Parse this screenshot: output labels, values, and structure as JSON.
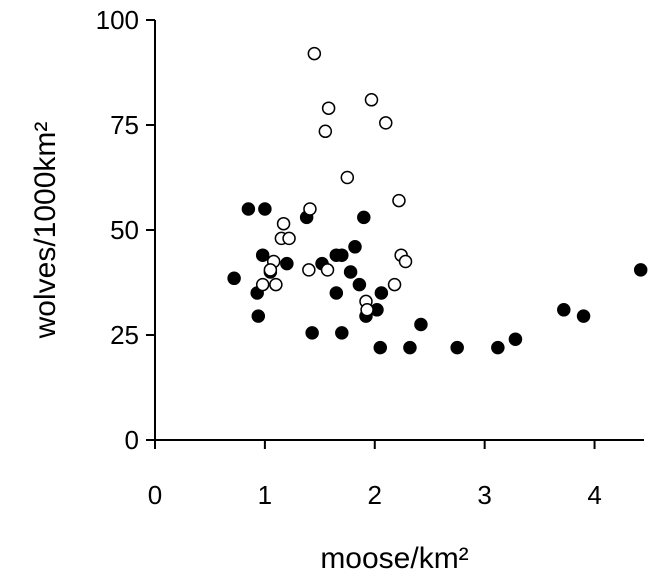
{
  "chart_data": {
    "type": "scatter",
    "title": "",
    "xlabel": "moose/km²",
    "ylabel": "wolves/1000km²",
    "xlim": [
      0,
      4.45
    ],
    "ylim": [
      0,
      100
    ],
    "x_ticks": [
      "0",
      "1",
      "2",
      "3",
      "4"
    ],
    "x_tick_values": [
      0,
      1,
      2,
      3,
      4
    ],
    "y_ticks": [
      "0",
      "25",
      "50",
      "75",
      "100"
    ],
    "y_tick_values": [
      0,
      25,
      50,
      75,
      100
    ],
    "grid": false,
    "legend": "none",
    "series": [
      {
        "marker": "filled-circle",
        "color": "#000000",
        "points": [
          [
            0.72,
            38.5
          ],
          [
            0.85,
            55
          ],
          [
            0.93,
            35
          ],
          [
            0.94,
            29.5
          ],
          [
            0.98,
            44
          ],
          [
            1.0,
            55
          ],
          [
            1.05,
            40
          ],
          [
            1.2,
            42
          ],
          [
            1.38,
            53
          ],
          [
            1.43,
            25.5
          ],
          [
            1.52,
            42
          ],
          [
            1.65,
            35
          ],
          [
            1.65,
            44
          ],
          [
            1.7,
            44
          ],
          [
            1.7,
            25.5
          ],
          [
            1.78,
            40
          ],
          [
            1.82,
            46
          ],
          [
            1.86,
            37
          ],
          [
            1.9,
            53
          ],
          [
            1.92,
            29.5
          ],
          [
            2.02,
            31
          ],
          [
            2.05,
            22
          ],
          [
            2.06,
            35
          ],
          [
            2.32,
            22
          ],
          [
            2.42,
            27.5
          ],
          [
            2.75,
            22
          ],
          [
            3.12,
            22
          ],
          [
            3.28,
            24
          ],
          [
            3.72,
            31
          ],
          [
            3.9,
            29.5
          ],
          [
            4.42,
            40.5
          ]
        ]
      },
      {
        "marker": "open-circle",
        "color": "#000000",
        "points": [
          [
            1.45,
            92
          ],
          [
            1.58,
            79
          ],
          [
            1.55,
            73.5
          ],
          [
            1.97,
            81
          ],
          [
            2.1,
            75.5
          ],
          [
            1.75,
            62.5
          ],
          [
            2.22,
            57
          ],
          [
            1.41,
            55
          ],
          [
            1.17,
            51.5
          ],
          [
            1.15,
            48
          ],
          [
            1.22,
            48
          ],
          [
            2.24,
            44
          ],
          [
            2.28,
            42.5
          ],
          [
            1.08,
            42.5
          ],
          [
            1.05,
            40.5
          ],
          [
            1.4,
            40.5
          ],
          [
            1.57,
            40.5
          ],
          [
            0.98,
            37
          ],
          [
            1.1,
            37
          ],
          [
            2.18,
            37
          ],
          [
            1.92,
            33
          ],
          [
            1.93,
            31
          ]
        ]
      }
    ]
  }
}
